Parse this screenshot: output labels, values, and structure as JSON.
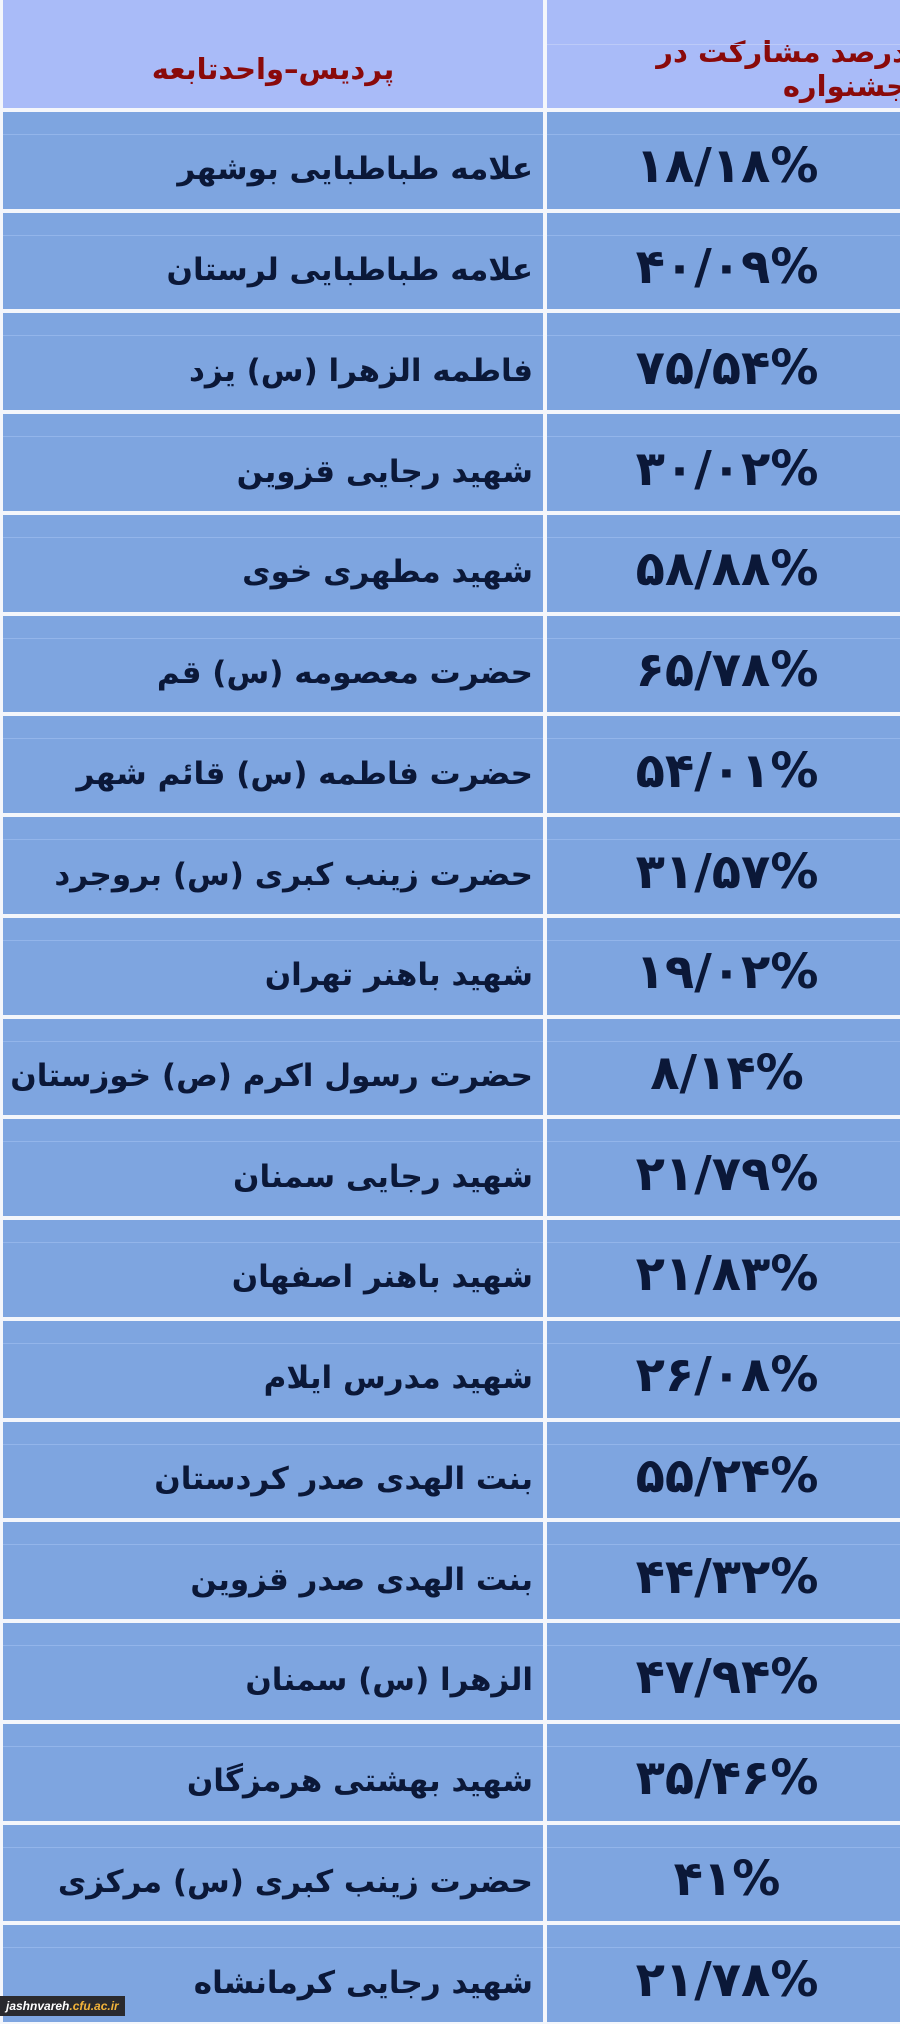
{
  "header": {
    "name_column": "پردیس–واحدتابعه",
    "percent_column": "درصد مشارکت در جشنواره"
  },
  "rows": [
    {
      "name": "علامه طباطبایی بوشهر",
      "percent": "۱۸/۱۸%"
    },
    {
      "name": "علامه طباطبایی لرستان",
      "percent": "۴۰/۰۹%"
    },
    {
      "name": "فاطمه الزهرا (س) یزد",
      "percent": "۷۵/۵۴%"
    },
    {
      "name": "شهید رجایی قزوین",
      "percent": "۳۰/۰۲%"
    },
    {
      "name": "شهید مطهری خوی",
      "percent": "۵۸/۸۸%"
    },
    {
      "name": "حضرت معصومه (س) قم",
      "percent": "۶۵/۷۸%"
    },
    {
      "name": "حضرت فاطمه (س) قائم شهر",
      "percent": "۵۴/۰۱%"
    },
    {
      "name": "حضرت زینب کبری (س) بروجرد",
      "percent": "۳۱/۵۷%"
    },
    {
      "name": "شهید باهنر تهران",
      "percent": "۱۹/۰۲%"
    },
    {
      "name": "حضرت رسول اکرم (ص) خوزستان",
      "percent": "۸/۱۴%"
    },
    {
      "name": "شهید رجایی سمنان",
      "percent": "۲۱/۷۹%"
    },
    {
      "name": "شهید باهنر اصفهان",
      "percent": "۲۱/۸۳%"
    },
    {
      "name": "شهید مدرس ایلام",
      "percent": "۲۶/۰۸%"
    },
    {
      "name": "بنت الهدی صدر کردستان",
      "percent": "۵۵/۲۴%"
    },
    {
      "name": "بنت الهدی صدر قزوین",
      "percent": "۴۴/۳۲%"
    },
    {
      "name": "الزهرا (س) سمنان",
      "percent": "۴۷/۹۴%"
    },
    {
      "name": "شهید بهشتی هرمزگان",
      "percent": "۳۵/۴۶%"
    },
    {
      "name": "حضرت زینب کبری (س) مرکزی",
      "percent": "۴۱%"
    },
    {
      "name": "شهید رجایی کرمانشاه",
      "percent": "۲۱/۷۸%"
    }
  ],
  "watermark": {
    "part1": "jashnvareh",
    "part2": ".cfu.ac.ir"
  },
  "colors": {
    "header_bg": "#a9bbf8",
    "row_bg": "#7ea5e0",
    "header_text": "#8a0a0a",
    "body_text": "#0b1838"
  }
}
